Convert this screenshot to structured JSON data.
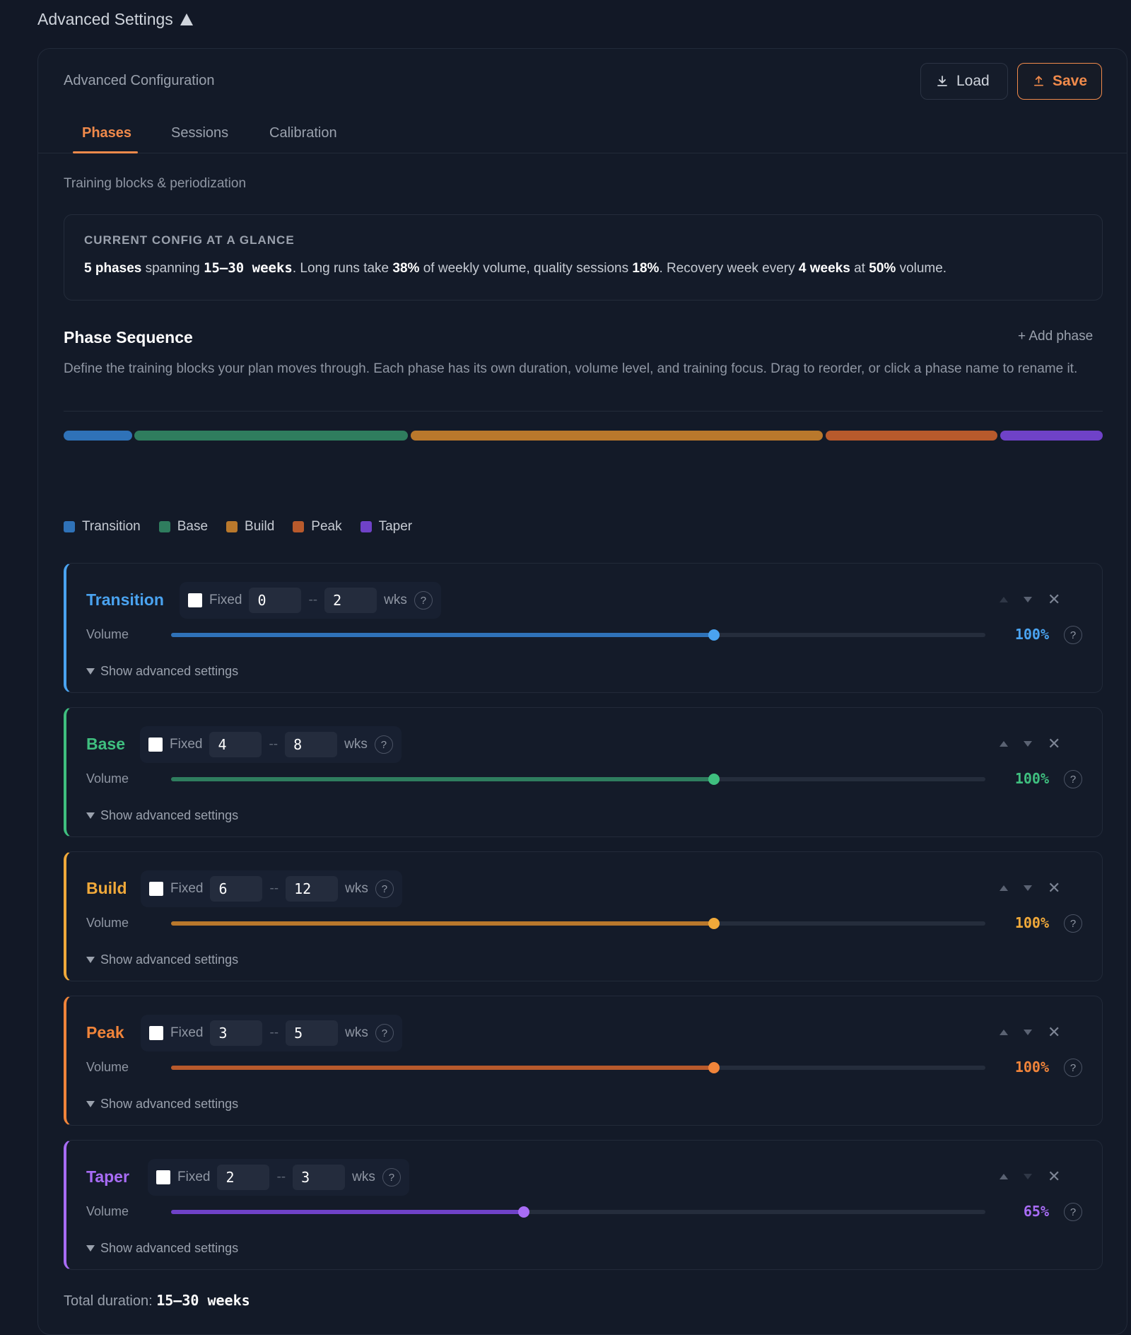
{
  "header": {
    "title": "Advanced Settings"
  },
  "card": {
    "title": "Advanced Configuration",
    "load_label": "Load",
    "save_label": "Save",
    "tabs": [
      "Phases",
      "Sessions",
      "Calibration"
    ],
    "active_tab": "Phases",
    "subtitle": "Training blocks & periodization"
  },
  "glance": {
    "label": "CURRENT CONFIG AT A GLANCE",
    "phase_count": "5 phases",
    "t_spanning": "spanning",
    "span": "15–30 weeks",
    "t_long": ". Long runs take",
    "long_pct": "38%",
    "t_quality": "of weekly volume, quality sessions",
    "quality_pct": "18%",
    "t_recovery": ". Recovery week every",
    "recovery_weeks": "4 weeks",
    "t_at": "at",
    "recovery_pct": "50%",
    "t_volume": "volume."
  },
  "sequence": {
    "title": "Phase Sequence",
    "add_label": "+ Add phase",
    "description": "Define the training blocks your plan moves through. Each phase has its own duration, volume level, and training focus. Drag to reorder, or click a phase name to rename it."
  },
  "legend": [
    {
      "label": "Transition",
      "color": "#2f72b8"
    },
    {
      "label": "Base",
      "color": "#2f7d5e"
    },
    {
      "label": "Build",
      "color": "#b9782c"
    },
    {
      "label": "Peak",
      "color": "#b85a2c"
    },
    {
      "label": "Taper",
      "color": "#6f42c8"
    }
  ],
  "phases": [
    {
      "name": "Transition",
      "color": "#4aa3f0",
      "bar": "#2f72b8",
      "fixed_label": "Fixed",
      "min": "0",
      "max": "2",
      "unit": "wks",
      "volume_label": "Volume",
      "volume": 100,
      "volume_text": "100%",
      "slider_fraction": 0.667,
      "show_advanced": "Show advanced settings"
    },
    {
      "name": "Base",
      "color": "#3fbf7f",
      "bar": "#2f7d5e",
      "fixed_label": "Fixed",
      "min": "4",
      "max": "8",
      "unit": "wks",
      "volume_label": "Volume",
      "volume": 100,
      "volume_text": "100%",
      "slider_fraction": 0.667,
      "show_advanced": "Show advanced settings"
    },
    {
      "name": "Build",
      "color": "#f0a93a",
      "bar": "#b9782c",
      "fixed_label": "Fixed",
      "min": "6",
      "max": "12",
      "unit": "wks",
      "volume_label": "Volume",
      "volume": 100,
      "volume_text": "100%",
      "slider_fraction": 0.667,
      "show_advanced": "Show advanced settings"
    },
    {
      "name": "Peak",
      "color": "#f0843a",
      "bar": "#b85a2c",
      "fixed_label": "Fixed",
      "min": "3",
      "max": "5",
      "unit": "wks",
      "volume_label": "Volume",
      "volume": 100,
      "volume_text": "100%",
      "slider_fraction": 0.667,
      "show_advanced": "Show advanced settings"
    },
    {
      "name": "Taper",
      "color": "#a86cf5",
      "bar": "#6f42c8",
      "fixed_label": "Fixed",
      "min": "2",
      "max": "3",
      "unit": "wks",
      "volume_label": "Volume",
      "volume": 65,
      "volume_text": "65%",
      "slider_fraction": 0.433,
      "show_advanced": "Show advanced settings"
    }
  ],
  "total": {
    "label": "Total duration:",
    "value": "15–30 weeks"
  }
}
